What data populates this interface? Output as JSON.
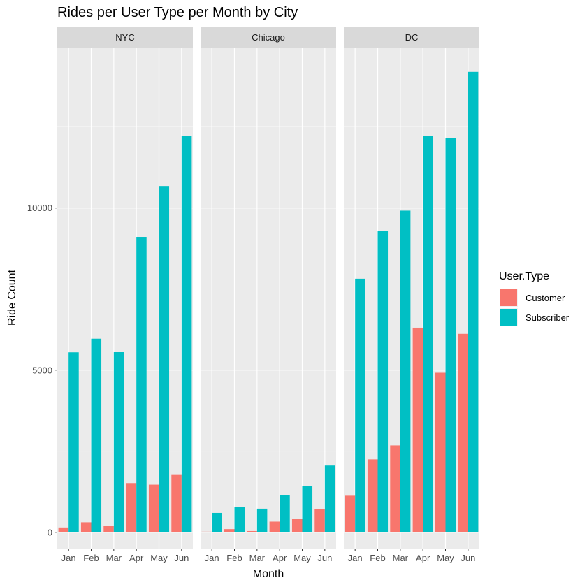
{
  "chart_data": {
    "type": "bar",
    "title": "Rides per User Type per Month by City",
    "xlabel": "Month",
    "ylabel": "Ride Count",
    "ylim": [
      -500,
      14950
    ],
    "yticks": [
      0,
      5000,
      10000
    ],
    "categories": [
      "Jan",
      "Feb",
      "Mar",
      "Apr",
      "May",
      "Jun"
    ],
    "legend": {
      "title": "User.Type",
      "placement": "right",
      "entries": [
        "Customer",
        "Subscriber"
      ]
    },
    "colors": {
      "Customer": "#F8766D",
      "Subscriber": "#00BFC4"
    },
    "facets": [
      {
        "label": "NYC",
        "series": [
          {
            "name": "Customer",
            "values": [
              150,
              310,
              200,
              1520,
              1470,
              1770
            ]
          },
          {
            "name": "Subscriber",
            "values": [
              5550,
              5970,
              5560,
              9110,
              10680,
              12220
            ]
          }
        ]
      },
      {
        "label": "Chicago",
        "series": [
          {
            "name": "Customer",
            "values": [
              20,
              100,
              40,
              330,
              420,
              720
            ]
          },
          {
            "name": "Subscriber",
            "values": [
              600,
              780,
              730,
              1150,
              1430,
              2060
            ]
          }
        ]
      },
      {
        "label": "DC",
        "series": [
          {
            "name": "Customer",
            "values": [
              1130,
              2250,
              2680,
              6310,
              4920,
              6120
            ]
          },
          {
            "name": "Subscriber",
            "values": [
              7820,
              9300,
              9920,
              12220,
              12170,
              14200
            ]
          }
        ]
      }
    ]
  }
}
